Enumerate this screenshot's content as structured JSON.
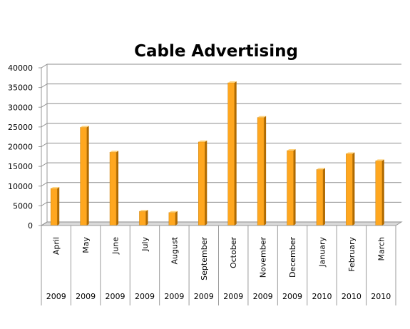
{
  "chart_data": {
    "type": "bar",
    "title": "Cable Advertising",
    "categories": [
      "April",
      "May",
      "June",
      "July",
      "August",
      "September",
      "October",
      "November",
      "December",
      "January",
      "February",
      "March"
    ],
    "years": [
      "2009",
      "2009",
      "2009",
      "2009",
      "2009",
      "2009",
      "2009",
      "2009",
      "2009",
      "2010",
      "2010",
      "2010"
    ],
    "series": [
      {
        "values": [
          9400,
          24900,
          18600,
          3600,
          3300,
          21200,
          36200,
          27400,
          19000,
          14200,
          18200,
          16400
        ]
      }
    ],
    "ylim": [
      0,
      40000
    ],
    "yticks": [
      "0",
      "5000",
      "10000",
      "15000",
      "20000",
      "25000",
      "30000",
      "35000",
      "40000"
    ],
    "grid": true,
    "legend": "none",
    "colors": {
      "bar_front": "#FFA71F",
      "bar_side": "#B06A00",
      "bar_top": "#FFD27A",
      "grid": "#8C8C8C",
      "wall": "#9A9A9A"
    }
  }
}
